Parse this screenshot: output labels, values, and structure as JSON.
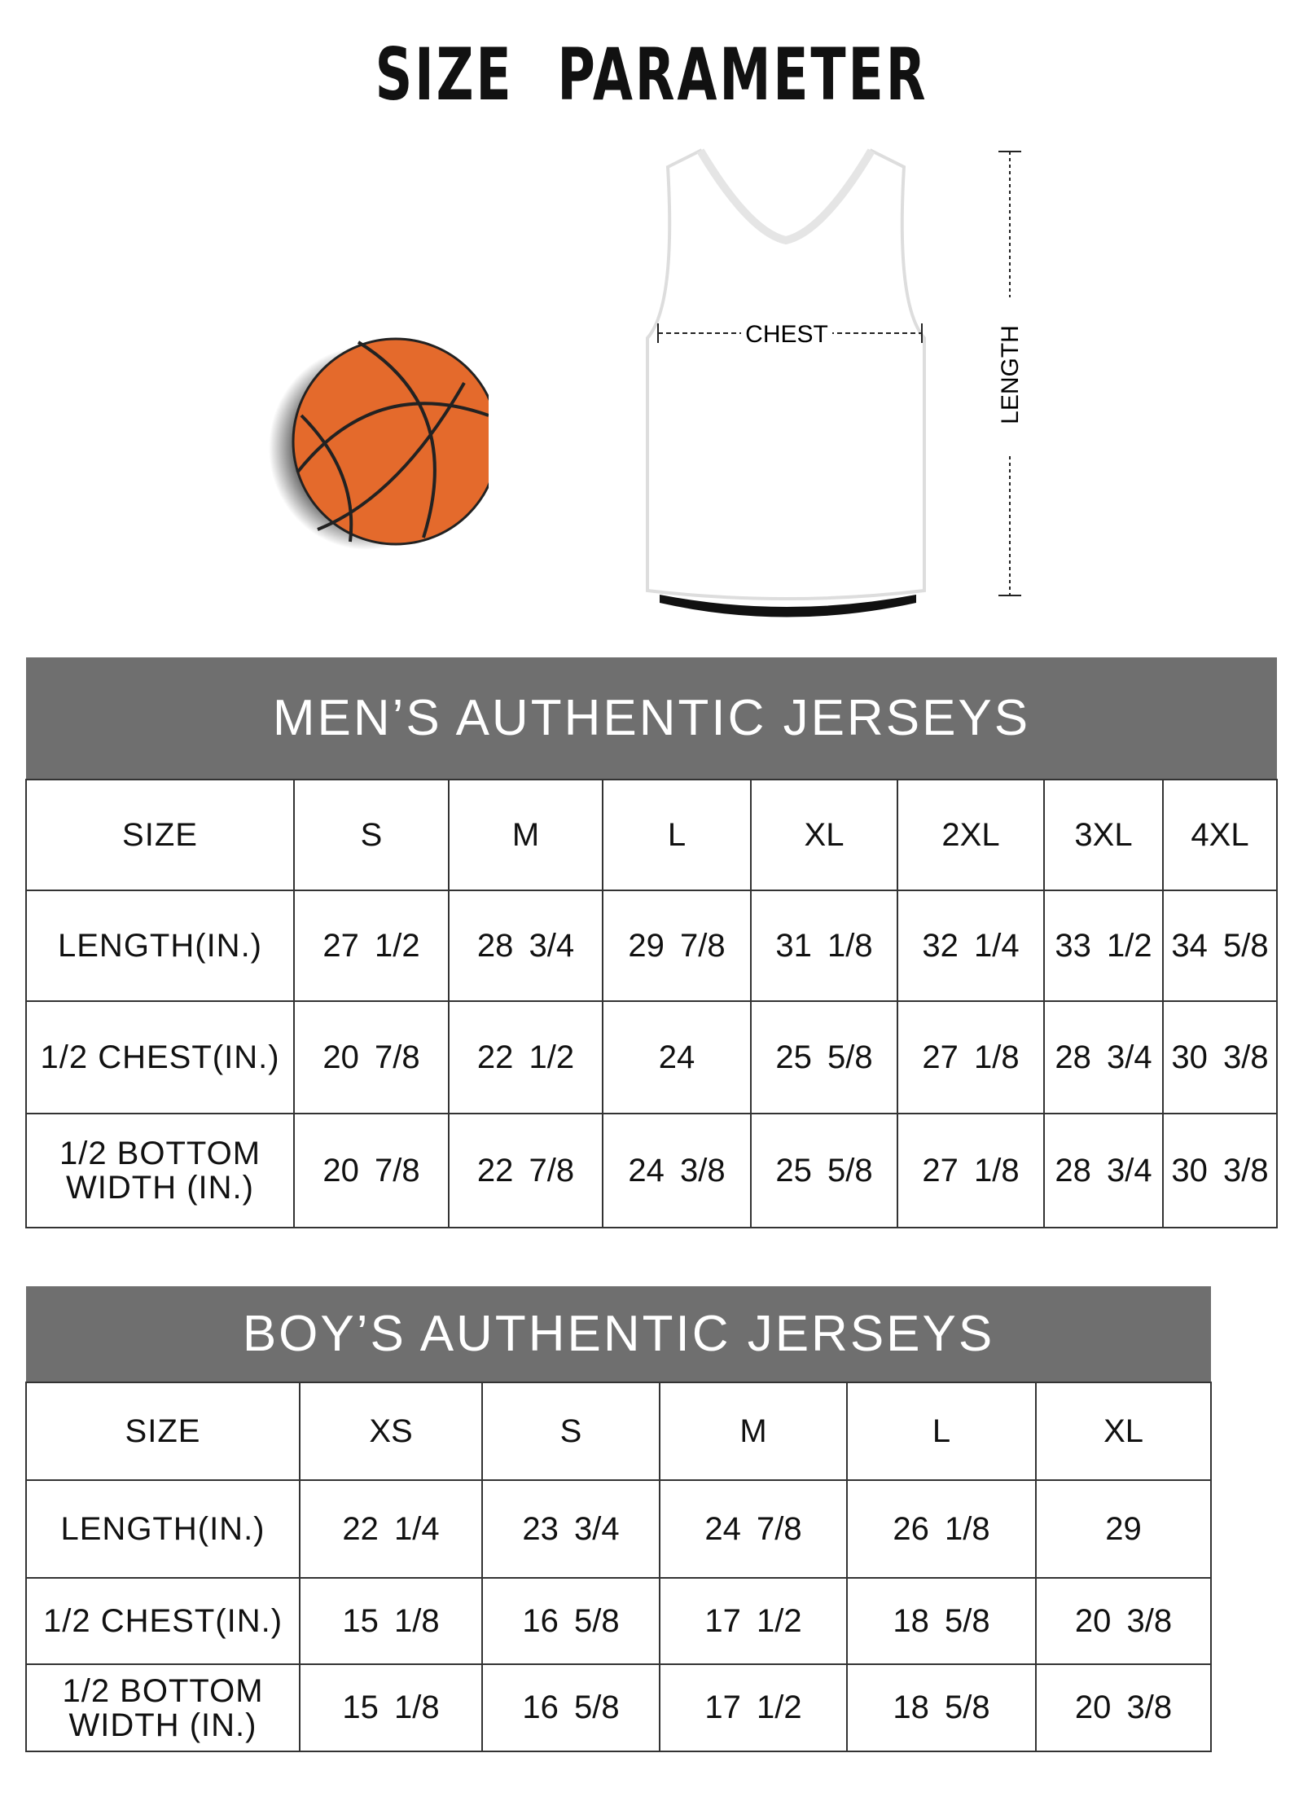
{
  "title": "SIZE PARAMETER",
  "diagram": {
    "chest_label": "CHEST",
    "length_label": "LENGTH",
    "colors": {
      "ball": "#e46a2c",
      "header_fill": "#6f6f6f"
    }
  },
  "mens_table": {
    "title": "MEN’S AUTHENTIC JERSEYS",
    "size_label": "SIZE",
    "sizes": [
      "S",
      "M",
      "L",
      "XL",
      "2XL",
      "3XL",
      "4XL"
    ],
    "rows": [
      {
        "label": "LENGTH(IN.)",
        "values": [
          "27  1/2",
          "28  3/4",
          "29  7/8",
          "31  1/8",
          "32  1/4",
          "33  1/2",
          "34  5/8"
        ]
      },
      {
        "label": "1/2 CHEST(IN.)",
        "values": [
          "20  7/8",
          "22  1/2",
          "24",
          "25  5/8",
          "27  1/8",
          "28  3/4",
          "30  3/8"
        ]
      },
      {
        "label": "1/2 BOTTOM WIDTH  (IN.)",
        "values": [
          "20  7/8",
          "22  7/8",
          "24  3/8",
          "25  5/8",
          "27  1/8",
          "28  3/4",
          "30  3/8"
        ]
      }
    ]
  },
  "boys_table": {
    "title": "BOY’S AUTHENTIC JERSEYS",
    "size_label": "SIZE",
    "sizes": [
      "XS",
      "S",
      "M",
      "L",
      "XL"
    ],
    "rows": [
      {
        "label": "LENGTH(IN.)",
        "values": [
          "22  1/4",
          "23  3/4",
          "24  7/8",
          "26  1/8",
          "29"
        ]
      },
      {
        "label": "1/2 CHEST(IN.)",
        "values": [
          "15  1/8",
          "16  5/8",
          "17  1/2",
          "18  5/8",
          "20  3/8"
        ]
      },
      {
        "label": "1/2 BOTTOM WIDTH  (IN.)",
        "values": [
          "15  1/8",
          "16  5/8",
          "17  1/2",
          "18  5/8",
          "20  3/8"
        ]
      }
    ]
  }
}
